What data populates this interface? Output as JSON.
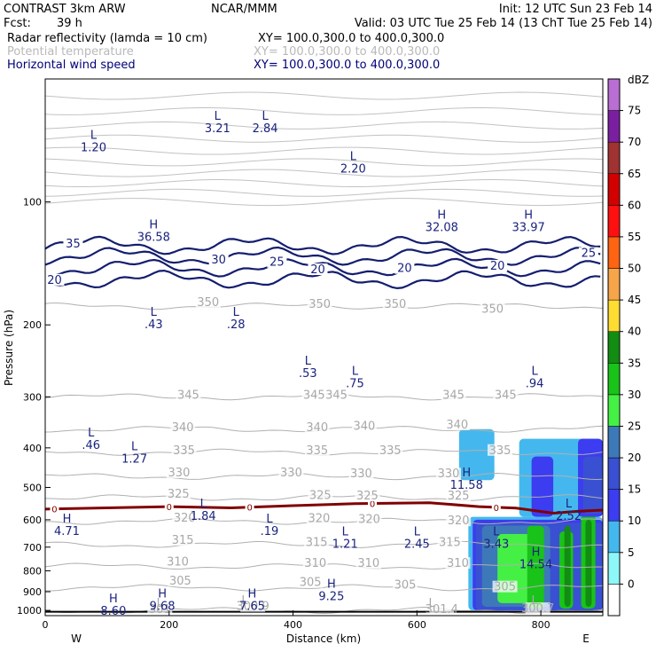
{
  "header": {
    "model": "CONTRAST  3km ARW",
    "center": "NCAR/MMM",
    "init": "Init: 12 UTC Sun 23 Feb 14",
    "fcst_label": "Fcst:",
    "fcst_value": "39 h",
    "valid": "Valid: 03 UTC Tue 25 Feb 14 (13 ChT Tue 25 Feb 14)",
    "fields": [
      {
        "name": "Radar reflectivity (lamda = 10 cm)",
        "xy": "XY= 100.0,300.0 to 400.0,300.0",
        "color": "#000000"
      },
      {
        "name": "Potential temperature",
        "xy": "XY= 100.0,300.0 to 400.0,300.0",
        "color": "#b9b9b9"
      },
      {
        "name": "Horizontal wind speed",
        "xy": "XY= 100.0,300.0 to 400.0,300.0",
        "color": "#00007a"
      }
    ]
  },
  "chart_data": {
    "type": "heatmap",
    "xlabel": "Distance (km)",
    "ylabel": "Pressure (hPa)",
    "xlim": [
      0,
      900
    ],
    "ylim": [
      1030,
      50
    ],
    "yscale": "log",
    "x_ticks": [
      0,
      200,
      400,
      600,
      800
    ],
    "y_ticks": [
      100,
      200,
      300,
      400,
      500,
      600,
      700,
      800,
      900,
      1000
    ],
    "x_end_labels": {
      "left": "W",
      "right": "E"
    },
    "colorbar": {
      "units": "dBZ",
      "levels": [
        0,
        5,
        10,
        15,
        20,
        25,
        30,
        35,
        40,
        45,
        50,
        55,
        60,
        65,
        70,
        75
      ],
      "colors": [
        "#ffffff",
        "#8ef8f8",
        "#44b8ee",
        "#3c3cf0",
        "#3a50d2",
        "#3d79b8",
        "#45f045",
        "#19c319",
        "#128c12",
        "#ffdc32",
        "#f7a54b",
        "#ff6412",
        "#ff1010",
        "#d20000",
        "#a03232",
        "#7a1fa0",
        "#b86ed2"
      ]
    },
    "reflectivity_regions": [
      {
        "x": [
          683,
          900
        ],
        "p": [
          590,
          1000
        ],
        "dbz": 5
      },
      {
        "x": [
          690,
          900
        ],
        "p": [
          600,
          1000
        ],
        "dbz": 10
      },
      {
        "x": [
          695,
          900
        ],
        "p": [
          610,
          1000
        ],
        "dbz": 15
      },
      {
        "x": [
          705,
          815
        ],
        "p": [
          620,
          980
        ],
        "dbz": 20
      },
      {
        "x": [
          730,
          800
        ],
        "p": [
          650,
          960
        ],
        "dbz": 25
      },
      {
        "x": [
          778,
          805
        ],
        "p": [
          620,
          990
        ],
        "dbz": 30
      },
      {
        "x": [
          830,
          852
        ],
        "p": [
          640,
          990
        ],
        "dbz": 30
      },
      {
        "x": [
          865,
          888
        ],
        "p": [
          570,
          990
        ],
        "dbz": 30
      },
      {
        "x": [
          838,
          848
        ],
        "p": [
          620,
          980
        ],
        "dbz": 35
      },
      {
        "x": [
          872,
          882
        ],
        "p": [
          600,
          980
        ],
        "dbz": 35
      },
      {
        "x": [
          668,
          725
        ],
        "p": [
          360,
          480
        ],
        "dbz": 5
      },
      {
        "x": [
          765,
          900
        ],
        "p": [
          380,
          590
        ],
        "dbz": 5
      },
      {
        "x": [
          785,
          820
        ],
        "p": [
          420,
          590
        ],
        "dbz": 10
      },
      {
        "x": [
          860,
          900
        ],
        "p": [
          380,
          590
        ],
        "dbz": 10
      },
      {
        "x": [
          868,
          900
        ],
        "p": [
          420,
          580
        ],
        "dbz": 15
      }
    ],
    "zero_dbz_contour": {
      "label": "0",
      "points": [
        [
          0,
          565
        ],
        [
          100,
          561
        ],
        [
          200,
          557
        ],
        [
          300,
          561
        ],
        [
          400,
          554
        ],
        [
          500,
          548
        ],
        [
          620,
          545
        ],
        [
          700,
          557
        ],
        [
          760,
          562
        ],
        [
          820,
          578
        ],
        [
          860,
          572
        ],
        [
          900,
          568
        ]
      ]
    },
    "theta_contours": [
      {
        "level": 300,
        "p_base": 1000
      },
      {
        "level": 305,
        "p_base": 880
      },
      {
        "level": 310,
        "p_base": 780
      },
      {
        "level": 315,
        "p_base": 690
      },
      {
        "level": 320,
        "p_base": 605
      },
      {
        "level": 325,
        "p_base": 530
      },
      {
        "level": 330,
        "p_base": 470
      },
      {
        "level": 335,
        "p_base": 410
      },
      {
        "level": 340,
        "p_base": 360
      },
      {
        "level": 345,
        "p_base": 300
      },
      {
        "level": 350,
        "p_base": 180
      }
    ],
    "theta_labels": [
      {
        "text": "300.9",
        "x": 335,
        "p": 988
      },
      {
        "text": "301",
        "x": 185,
        "p": 1005
      },
      {
        "text": "301.4",
        "x": 640,
        "p": 1005
      },
      {
        "text": "300.7",
        "x": 795,
        "p": 1000
      },
      {
        "text": "L",
        "x": 185,
        "p": 970
      },
      {
        "text": "L",
        "x": 322,
        "p": 955
      },
      {
        "text": "L",
        "x": 624,
        "p": 970
      },
      {
        "text": "L",
        "x": 790,
        "p": 955
      },
      {
        "text": "305",
        "x": 218,
        "p": 855
      },
      {
        "text": "305",
        "x": 428,
        "p": 863
      },
      {
        "text": "305",
        "x": 581,
        "p": 875
      },
      {
        "text": "305",
        "x": 742,
        "p": 885
      },
      {
        "text": "310",
        "x": 214,
        "p": 768
      },
      {
        "text": "310",
        "x": 436,
        "p": 775
      },
      {
        "text": "310",
        "x": 522,
        "p": 775
      },
      {
        "text": "310",
        "x": 666,
        "p": 775
      },
      {
        "text": "315",
        "x": 222,
        "p": 680
      },
      {
        "text": "315",
        "x": 438,
        "p": 688
      },
      {
        "text": "315",
        "x": 653,
        "p": 688
      },
      {
        "text": "320",
        "x": 225,
        "p": 600
      },
      {
        "text": "320",
        "x": 442,
        "p": 602
      },
      {
        "text": "320",
        "x": 523,
        "p": 605
      },
      {
        "text": "320",
        "x": 667,
        "p": 610
      },
      {
        "text": "325",
        "x": 215,
        "p": 525
      },
      {
        "text": "325",
        "x": 444,
        "p": 528
      },
      {
        "text": "325",
        "x": 520,
        "p": 530
      },
      {
        "text": "325",
        "x": 667,
        "p": 530
      },
      {
        "text": "330",
        "x": 216,
        "p": 465
      },
      {
        "text": "330",
        "x": 397,
        "p": 465
      },
      {
        "text": "330",
        "x": 510,
        "p": 468
      },
      {
        "text": "330",
        "x": 651,
        "p": 468
      },
      {
        "text": "335",
        "x": 224,
        "p": 410
      },
      {
        "text": "335",
        "x": 439,
        "p": 410
      },
      {
        "text": "335",
        "x": 557,
        "p": 410
      },
      {
        "text": "335",
        "x": 734,
        "p": 410
      },
      {
        "text": "340",
        "x": 222,
        "p": 360
      },
      {
        "text": "340",
        "x": 439,
        "p": 360
      },
      {
        "text": "340",
        "x": 515,
        "p": 358
      },
      {
        "text": "340",
        "x": 665,
        "p": 355
      },
      {
        "text": "345",
        "x": 231,
        "p": 300
      },
      {
        "text": "345",
        "x": 434,
        "p": 300
      },
      {
        "text": "345",
        "x": 470,
        "p": 300
      },
      {
        "text": "345",
        "x": 659,
        "p": 300
      },
      {
        "text": "345",
        "x": 743,
        "p": 300
      },
      {
        "text": "350",
        "x": 263,
        "p": 178
      },
      {
        "text": "350",
        "x": 443,
        "p": 180
      },
      {
        "text": "350",
        "x": 565,
        "p": 180
      },
      {
        "text": "350",
        "x": 722,
        "p": 185
      }
    ],
    "wind_contours": [
      {
        "level": 20,
        "p": 155
      },
      {
        "level": 25,
        "p": 145
      },
      {
        "level": 30,
        "p": 136
      },
      {
        "level": 35,
        "p": 128
      }
    ],
    "wind_labels": [
      {
        "text": "35",
        "x": 45,
        "p": 128
      },
      {
        "text": "30",
        "x": 280,
        "p": 140
      },
      {
        "text": "25",
        "x": 374,
        "p": 142
      },
      {
        "text": "20",
        "x": 15,
        "p": 157
      },
      {
        "text": "20",
        "x": 440,
        "p": 148
      },
      {
        "text": "20",
        "x": 580,
        "p": 147
      },
      {
        "text": "20",
        "x": 730,
        "p": 145
      },
      {
        "text": "25",
        "x": 877,
        "p": 135
      }
    ],
    "hl_markers": [
      {
        "type": "L",
        "value": "1.20",
        "x": 78,
        "p": 70
      },
      {
        "type": "L",
        "value": "3.21",
        "x": 278,
        "p": 63
      },
      {
        "type": "L",
        "value": "2.84",
        "x": 355,
        "p": 63
      },
      {
        "type": "L",
        "value": "2.20",
        "x": 497,
        "p": 79
      },
      {
        "type": "H",
        "value": "36.58",
        "x": 175,
        "p": 116
      },
      {
        "type": "H",
        "value": "32.08",
        "x": 640,
        "p": 110
      },
      {
        "type": "H",
        "value": "33.97",
        "x": 780,
        "p": 110
      },
      {
        "type": "L",
        "value": ".43",
        "x": 175,
        "p": 190
      },
      {
        "type": "L",
        "value": ".28",
        "x": 308,
        "p": 190
      },
      {
        "type": "L",
        "value": ".53",
        "x": 424,
        "p": 250
      },
      {
        "type": "L",
        "value": ".75",
        "x": 500,
        "p": 265
      },
      {
        "type": "L",
        "value": ".94",
        "x": 790,
        "p": 265
      },
      {
        "type": "L",
        "value": ".46",
        "x": 74,
        "p": 375
      },
      {
        "type": "L",
        "value": "1.27",
        "x": 144,
        "p": 405
      },
      {
        "type": "H",
        "value": "11.58",
        "x": 680,
        "p": 470
      },
      {
        "type": "L",
        "value": "1.84",
        "x": 255,
        "p": 560
      },
      {
        "type": "L",
        "value": "2.52",
        "x": 845,
        "p": 560
      },
      {
        "type": "H",
        "value": "4.71",
        "x": 35,
        "p": 610
      },
      {
        "type": "L",
        "value": ".19",
        "x": 362,
        "p": 610
      },
      {
        "type": "L",
        "value": "1.21",
        "x": 484,
        "p": 655
      },
      {
        "type": "L",
        "value": "2.45",
        "x": 600,
        "p": 655
      },
      {
        "type": "L",
        "value": "3.43",
        "x": 728,
        "p": 655
      },
      {
        "type": "H",
        "value": "14.54",
        "x": 792,
        "p": 735
      },
      {
        "type": "H",
        "value": "9.25",
        "x": 462,
        "p": 880
      },
      {
        "type": "H",
        "value": "9.68",
        "x": 189,
        "p": 930
      },
      {
        "type": "H",
        "value": "7.65",
        "x": 334,
        "p": 930
      },
      {
        "type": "H",
        "value": "8.60",
        "x": 110,
        "p": 955
      }
    ]
  }
}
